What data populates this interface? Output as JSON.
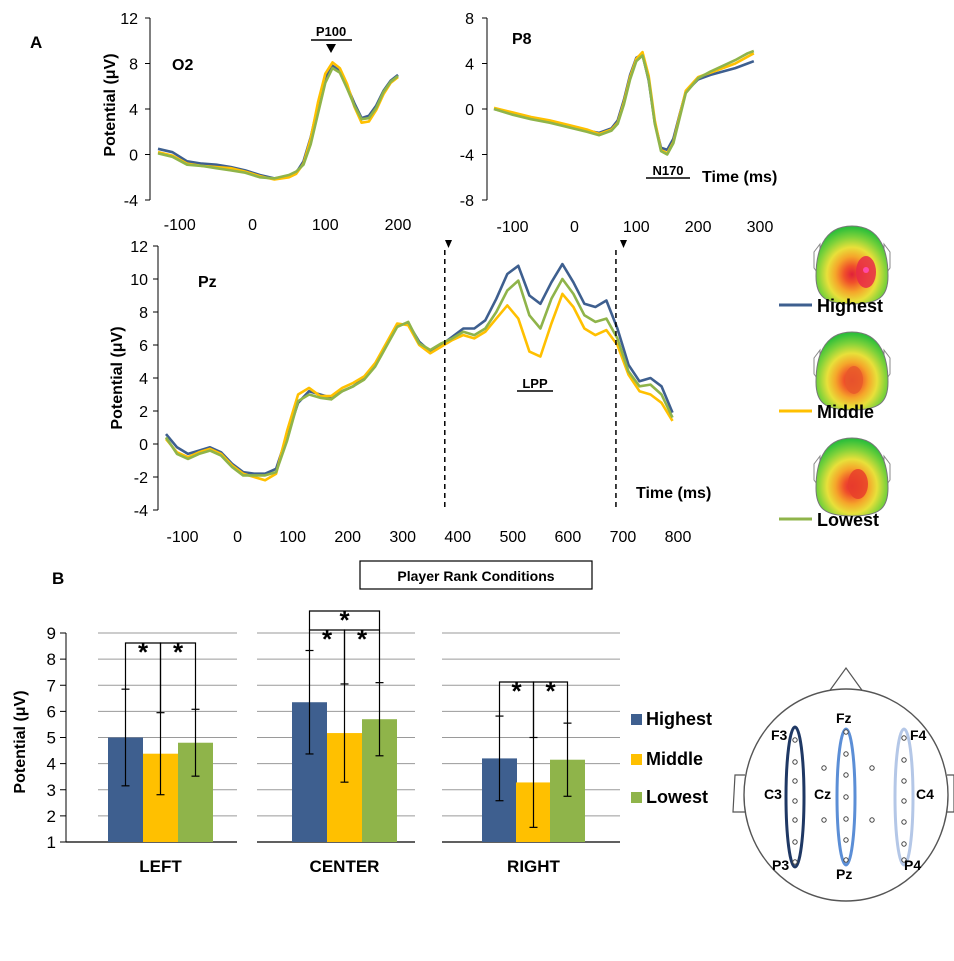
{
  "colors": {
    "highest": "#3E5F8F",
    "middle": "#FFC000",
    "lowest": "#8FB44A"
  },
  "panel_a": {
    "label": "A",
    "legend": [
      "Highest",
      "Middle",
      "Lowest"
    ],
    "chart_data": [
      {
        "type": "line",
        "title": "O2",
        "ylabel": "Potential (μV)",
        "xlabel": "",
        "ylim": [
          -4,
          12
        ],
        "xlim": [
          -130,
          200
        ],
        "yticks": [
          "-4",
          "0",
          "4",
          "8",
          "12"
        ],
        "xticks": [
          "-100",
          "0",
          "100",
          "200"
        ],
        "annotation": "P100",
        "series": [
          {
            "name": "Highest",
            "x": [
              -130,
              -110,
              -90,
              -70,
              -50,
              -30,
              -10,
              10,
              30,
              50,
              60,
              70,
              80,
              90,
              100,
              110,
              120,
              130,
              140,
              150,
              160,
              170,
              180,
              190,
              200
            ],
            "values": [
              0.5,
              0.2,
              -0.6,
              -0.8,
              -0.9,
              -1.1,
              -1.4,
              -1.8,
              -2.1,
              -1.9,
              -1.6,
              -0.6,
              1.5,
              4.3,
              6.8,
              7.8,
              7.4,
              6.0,
              4.5,
              3.2,
              3.4,
              4.3,
              5.6,
              6.5,
              7.0
            ]
          },
          {
            "name": "Middle",
            "x": [
              -130,
              -110,
              -90,
              -70,
              -50,
              -30,
              -10,
              10,
              30,
              50,
              60,
              70,
              80,
              90,
              100,
              110,
              120,
              130,
              140,
              150,
              160,
              170,
              180,
              190,
              200
            ],
            "values": [
              0.2,
              -0.1,
              -0.8,
              -1.0,
              -1.1,
              -1.2,
              -1.5,
              -1.9,
              -2.2,
              -2.0,
              -1.7,
              -0.8,
              1.4,
              4.6,
              7.1,
              8.1,
              7.6,
              6.2,
              4.2,
              2.8,
              2.9,
              3.9,
              5.3,
              6.3,
              6.8
            ]
          },
          {
            "name": "Lowest",
            "x": [
              -130,
              -110,
              -90,
              -70,
              -50,
              -30,
              -10,
              10,
              30,
              50,
              60,
              70,
              80,
              90,
              100,
              110,
              120,
              130,
              140,
              150,
              160,
              170,
              180,
              190,
              200
            ],
            "values": [
              0.1,
              -0.2,
              -0.9,
              -1.0,
              -1.2,
              -1.4,
              -1.6,
              -2.0,
              -2.1,
              -1.8,
              -1.5,
              -0.9,
              0.9,
              3.6,
              6.3,
              7.6,
              7.2,
              5.8,
              4.3,
              3.1,
              3.2,
              4.1,
              5.5,
              6.4,
              6.9
            ]
          }
        ]
      },
      {
        "type": "line",
        "title": "P8",
        "ylabel": "",
        "xlabel": "Time (ms)",
        "ylim": [
          -8,
          8
        ],
        "xlim": [
          -130,
          300
        ],
        "yticks": [
          "-8",
          "-4",
          "0",
          "4",
          "8"
        ],
        "xticks": [
          "-100",
          "0",
          "100",
          "200",
          "300"
        ],
        "annotation": "N170",
        "series": [
          {
            "name": "Highest",
            "x": [
              -130,
              -100,
              -70,
              -40,
              -10,
              20,
              40,
              60,
              70,
              80,
              90,
              100,
              110,
              120,
              130,
              140,
              150,
              160,
              170,
              180,
              200,
              220,
              240,
              260,
              280,
              290
            ],
            "values": [
              0.0,
              -0.4,
              -0.8,
              -1.1,
              -1.5,
              -1.9,
              -2.1,
              -1.7,
              -1.0,
              0.8,
              3.0,
              4.5,
              4.8,
              2.5,
              -1.2,
              -3.4,
              -3.6,
              -2.6,
              -0.5,
              1.5,
              2.6,
              3.0,
              3.3,
              3.6,
              4.0,
              4.2
            ]
          },
          {
            "name": "Middle",
            "x": [
              -130,
              -100,
              -70,
              -40,
              -10,
              20,
              40,
              60,
              70,
              80,
              90,
              100,
              110,
              120,
              130,
              140,
              150,
              160,
              170,
              180,
              200,
              220,
              240,
              260,
              280,
              290
            ],
            "values": [
              0.1,
              -0.3,
              -0.7,
              -1.0,
              -1.4,
              -1.8,
              -2.2,
              -1.8,
              -1.2,
              0.6,
              2.8,
              4.4,
              5.0,
              2.9,
              -1.0,
              -3.6,
              -3.9,
              -2.9,
              -0.6,
              1.6,
              2.8,
              3.2,
              3.6,
              4.0,
              4.6,
              4.9
            ]
          },
          {
            "name": "Lowest",
            "x": [
              -130,
              -100,
              -70,
              -40,
              -10,
              20,
              40,
              60,
              70,
              80,
              90,
              100,
              110,
              120,
              130,
              140,
              150,
              160,
              170,
              180,
              200,
              220,
              240,
              260,
              280,
              290
            ],
            "values": [
              0.0,
              -0.5,
              -0.9,
              -1.2,
              -1.6,
              -2.0,
              -2.3,
              -1.9,
              -1.3,
              0.4,
              2.6,
              4.2,
              4.7,
              2.6,
              -1.3,
              -3.7,
              -4.0,
              -3.0,
              -0.8,
              1.4,
              2.7,
              3.3,
              3.8,
              4.3,
              4.9,
              5.1
            ]
          }
        ]
      },
      {
        "type": "line",
        "title": "Pz",
        "ylabel": "Potential (μV)",
        "xlabel": "Time (ms)",
        "ylim": [
          -4,
          12
        ],
        "xlim": [
          -130,
          800
        ],
        "yticks": [
          "-4",
          "-2",
          "0",
          "2",
          "4",
          "6",
          "8",
          "10",
          "12"
        ],
        "xticks": [
          "-100",
          "0",
          "100",
          "200",
          "300",
          "400",
          "500",
          "600",
          "700",
          "800"
        ],
        "annotation": "LPP",
        "dashed_x": [
          400,
          700
        ],
        "series": [
          {
            "name": "Highest",
            "x": [
              -130,
              -110,
              -90,
              -70,
              -50,
              -30,
              -10,
              10,
              30,
              50,
              70,
              90,
              110,
              130,
              150,
              170,
              190,
              210,
              230,
              250,
              270,
              290,
              310,
              330,
              350,
              370,
              390,
              410,
              430,
              450,
              470,
              490,
              510,
              530,
              550,
              570,
              590,
              610,
              630,
              650,
              670,
              690,
              710,
              730,
              750,
              770,
              790
            ],
            "values": [
              0.6,
              -0.2,
              -0.6,
              -0.4,
              -0.2,
              -0.5,
              -1.2,
              -1.7,
              -1.8,
              -1.8,
              -1.5,
              0.5,
              2.5,
              3.2,
              3.0,
              2.8,
              3.2,
              3.5,
              4.0,
              4.8,
              6.0,
              7.2,
              7.3,
              6.2,
              5.6,
              6.0,
              6.5,
              7.0,
              7.0,
              7.5,
              8.8,
              10.3,
              10.8,
              9.0,
              8.5,
              9.8,
              10.9,
              9.8,
              8.5,
              8.3,
              8.7,
              7.0,
              4.8,
              3.8,
              4.0,
              3.5,
              1.9
            ]
          },
          {
            "name": "Middle",
            "x": [
              -130,
              -110,
              -90,
              -70,
              -50,
              -30,
              -10,
              10,
              30,
              50,
              70,
              90,
              110,
              130,
              150,
              170,
              190,
              210,
              230,
              250,
              270,
              290,
              310,
              330,
              350,
              370,
              390,
              410,
              430,
              450,
              470,
              490,
              510,
              530,
              550,
              570,
              590,
              610,
              630,
              650,
              670,
              690,
              710,
              730,
              750,
              770,
              790
            ],
            "values": [
              0.3,
              -0.5,
              -0.8,
              -0.5,
              -0.3,
              -0.6,
              -1.3,
              -1.8,
              -2.0,
              -2.2,
              -1.8,
              0.8,
              3.0,
              3.4,
              2.9,
              2.9,
              3.4,
              3.7,
              4.1,
              4.9,
              6.1,
              7.3,
              7.2,
              6.0,
              5.5,
              5.9,
              6.3,
              6.6,
              6.4,
              6.8,
              7.6,
              8.4,
              7.6,
              5.6,
              5.3,
              7.3,
              9.1,
              8.3,
              7.0,
              6.6,
              6.9,
              6.0,
              4.2,
              3.2,
              3.0,
              2.5,
              1.4
            ]
          },
          {
            "name": "Lowest",
            "x": [
              -130,
              -110,
              -90,
              -70,
              -50,
              -30,
              -10,
              10,
              30,
              50,
              70,
              90,
              110,
              130,
              150,
              170,
              190,
              210,
              230,
              250,
              270,
              290,
              310,
              330,
              350,
              370,
              390,
              410,
              430,
              450,
              470,
              490,
              510,
              530,
              550,
              570,
              590,
              610,
              630,
              650,
              670,
              690,
              710,
              730,
              750,
              770,
              790
            ],
            "values": [
              0.4,
              -0.6,
              -0.9,
              -0.6,
              -0.4,
              -0.7,
              -1.4,
              -1.9,
              -1.9,
              -1.9,
              -1.7,
              0.2,
              2.6,
              3.0,
              2.8,
              2.7,
              3.2,
              3.5,
              3.9,
              4.7,
              5.9,
              7.1,
              7.4,
              6.1,
              5.7,
              6.1,
              6.4,
              6.8,
              6.6,
              7.0,
              8.0,
              9.3,
              9.9,
              7.8,
              7.0,
              8.8,
              10.0,
              9.1,
              7.8,
              7.4,
              7.6,
              6.4,
              4.4,
              3.5,
              3.6,
              3.0,
              1.6
            ]
          }
        ]
      }
    ]
  },
  "panel_b": {
    "label": "B",
    "title": "Player Rank Conditions",
    "legend": [
      "Highest",
      "Middle",
      "Lowest"
    ],
    "electrodes": {
      "left": [
        "F3",
        "C3",
        "P3"
      ],
      "center": [
        "Fz",
        "Cz",
        "Pz"
      ],
      "right": [
        "F4",
        "C4",
        "P4"
      ]
    },
    "chart_data": {
      "type": "bar",
      "categories": [
        "LEFT",
        "CENTER",
        "RIGHT"
      ],
      "ylabel": "Potential (μV)",
      "xlabel": "",
      "ylim": [
        1,
        9
      ],
      "yticks": [
        "1",
        "2",
        "3",
        "4",
        "5",
        "6",
        "7",
        "8",
        "9"
      ],
      "series": [
        {
          "name": "Highest",
          "values": [
            5.0,
            6.35,
            4.2
          ],
          "error": [
            1.85,
            1.98,
            1.62
          ]
        },
        {
          "name": "Middle",
          "values": [
            4.38,
            5.17,
            3.28
          ],
          "error": [
            1.57,
            1.88,
            1.72
          ]
        },
        {
          "name": "Lowest",
          "values": [
            4.8,
            5.7,
            4.15
          ],
          "error": [
            1.28,
            1.4,
            1.4
          ]
        }
      ],
      "significance_marker": "*"
    }
  }
}
